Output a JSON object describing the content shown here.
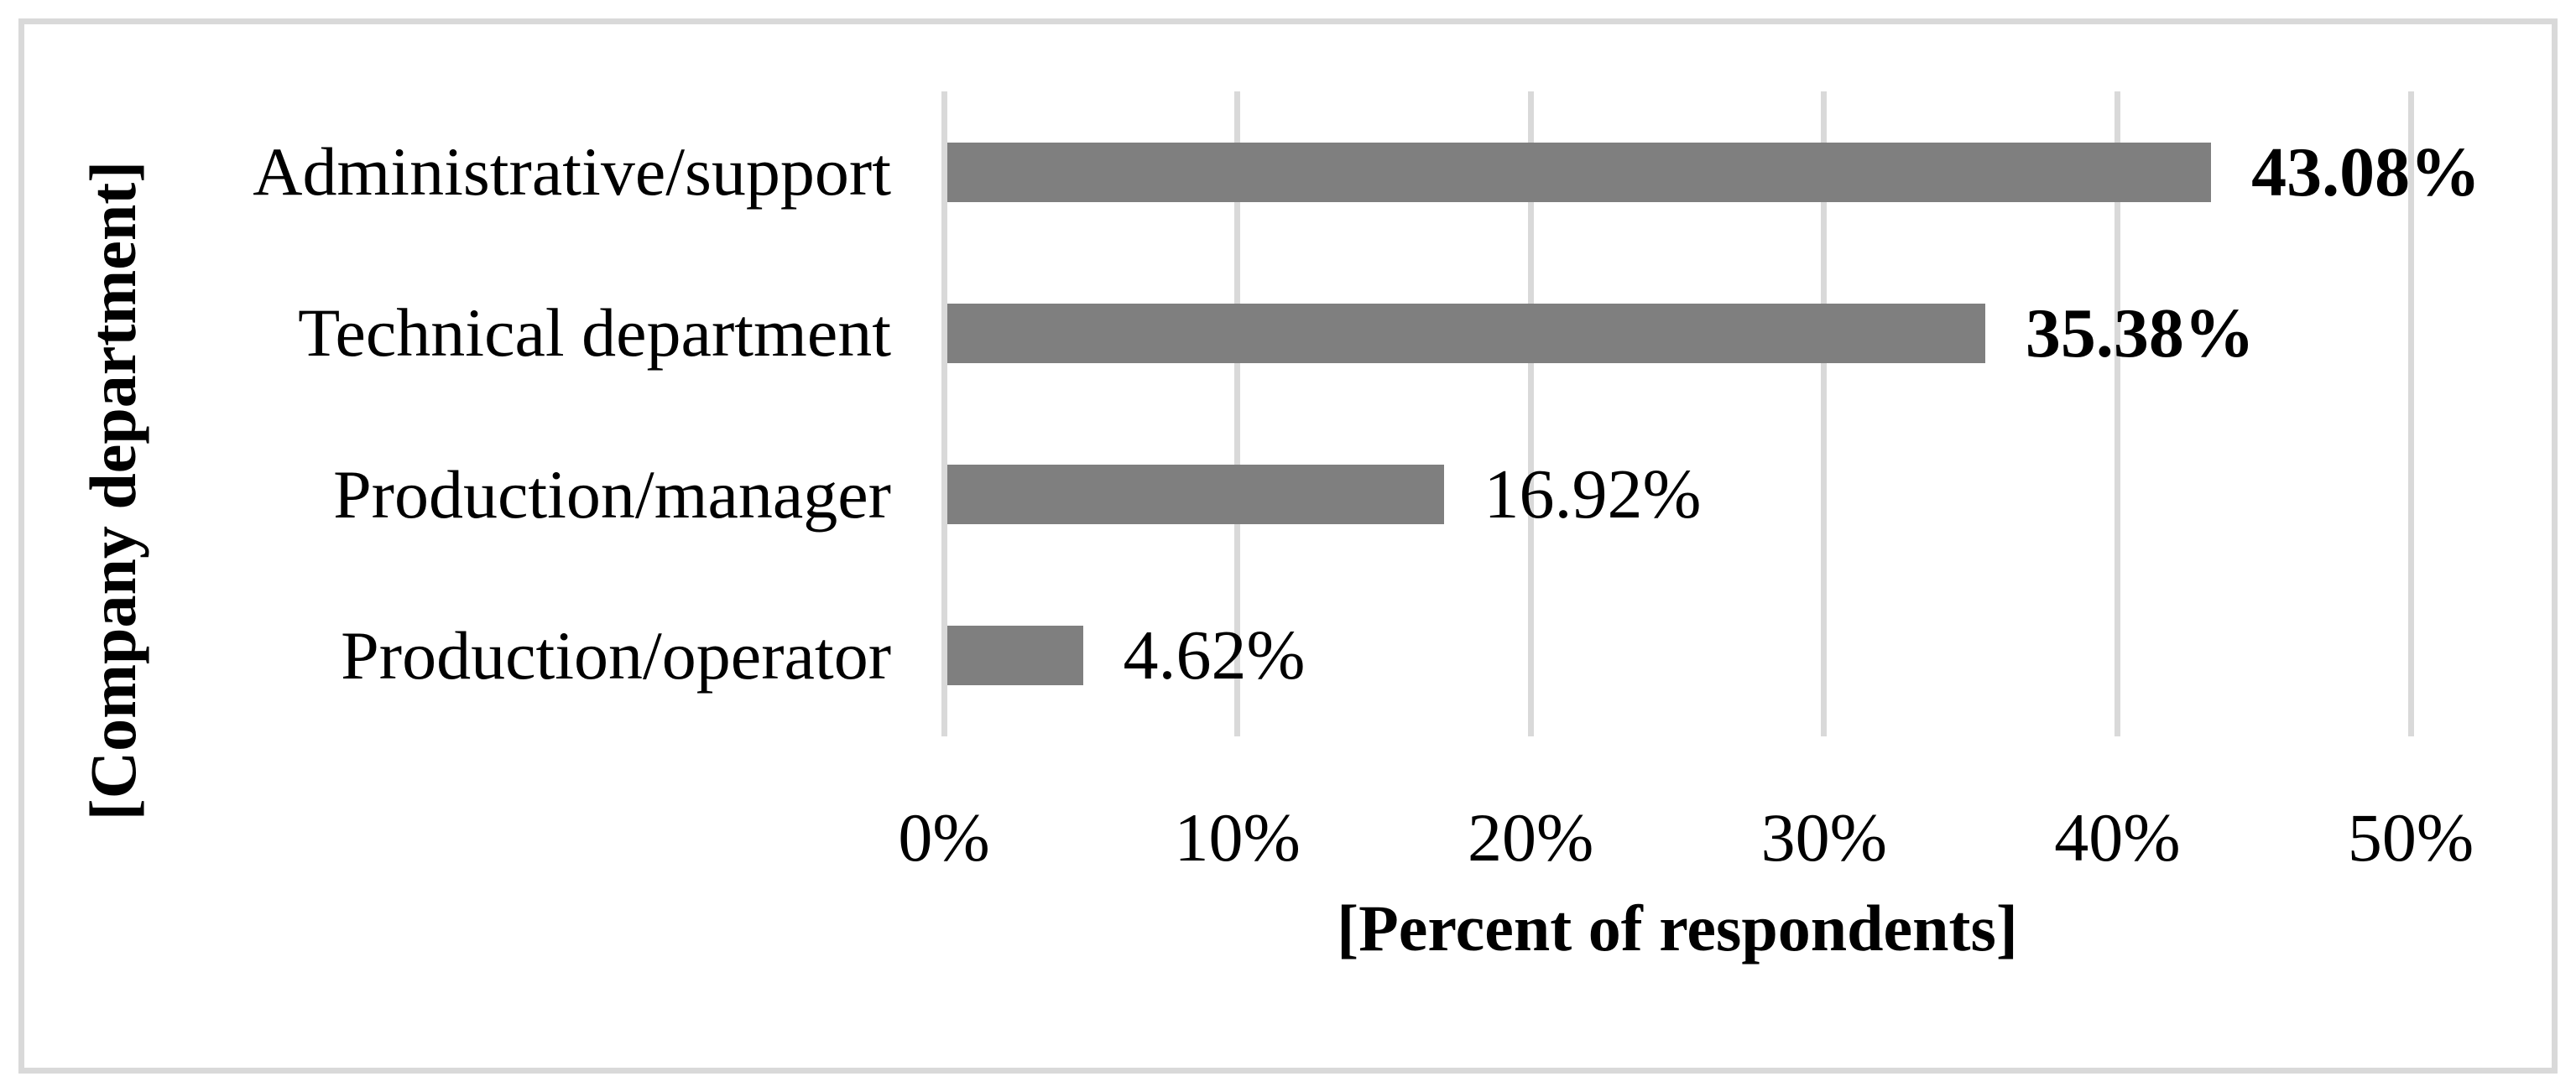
{
  "figure": {
    "background": "#FFFFFF",
    "border_color": "#D9D9D9",
    "text_color": "#000000"
  },
  "chart_data": {
    "type": "bar",
    "orientation": "horizontal",
    "title": "",
    "categories": [
      "Administrative/support",
      "Technical department",
      "Production/manager",
      "Production/operator"
    ],
    "values": [
      43.08,
      35.38,
      16.92,
      4.62
    ],
    "data_labels": [
      "43.08%",
      "35.38%",
      "16.92%",
      "4.62%"
    ],
    "data_labels_bold": [
      true,
      true,
      false,
      false
    ],
    "xlabel": "[Percent of respondents]",
    "ylabel": "[Company department]",
    "x_ticks": [
      {
        "label": "0%",
        "value": 0
      },
      {
        "label": "10%",
        "value": 10
      },
      {
        "label": "20%",
        "value": 20
      },
      {
        "label": "30%",
        "value": 30
      },
      {
        "label": "40%",
        "value": 40
      },
      {
        "label": "50%",
        "value": 50
      }
    ],
    "xlim": [
      0,
      50
    ],
    "grid": true,
    "legend": false,
    "bar_color": "#7F7F7F",
    "gridline_color": "#D9D9D9"
  }
}
